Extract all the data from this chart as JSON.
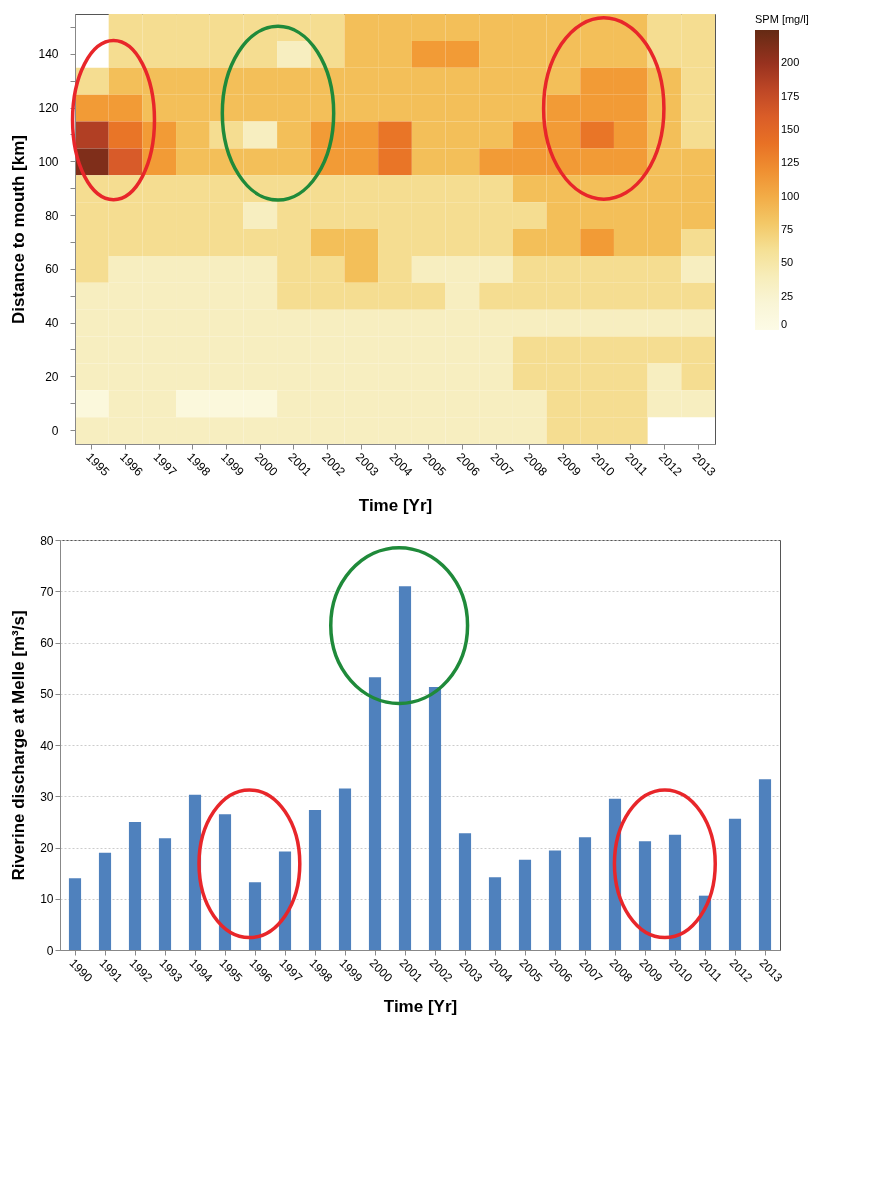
{
  "chart_data": [
    {
      "type": "heatmap",
      "xlabel": "Time [Yr]",
      "ylabel": "Distance to mouth [km]",
      "clabel": "SPM [mg/l]",
      "categories": [
        "1995",
        "1996",
        "1997",
        "1998",
        "1999",
        "2000",
        "2001",
        "2002",
        "2003",
        "2004",
        "2005",
        "2006",
        "2007",
        "2008",
        "2009",
        "2010",
        "2011",
        "2012",
        "2013"
      ],
      "y_categories": [
        null,
        "140",
        null,
        "120",
        null,
        "100",
        null,
        "80",
        null,
        "60",
        null,
        "40",
        null,
        "20",
        null,
        "0"
      ],
      "cells": [
        [
          null,
          62,
          62,
          62,
          62,
          62,
          62,
          62,
          87,
          87,
          87,
          87,
          87,
          87,
          87,
          87,
          87,
          62,
          62
        ],
        [
          null,
          62,
          62,
          62,
          62,
          62,
          37,
          62,
          87,
          87,
          112,
          112,
          87,
          87,
          87,
          87,
          87,
          62,
          62
        ],
        [
          62,
          87,
          87,
          87,
          87,
          87,
          87,
          87,
          87,
          87,
          87,
          87,
          87,
          87,
          87,
          112,
          112,
          87,
          62
        ],
        [
          112,
          112,
          87,
          87,
          87,
          87,
          87,
          87,
          87,
          87,
          87,
          87,
          87,
          87,
          112,
          112,
          112,
          87,
          62
        ],
        [
          187,
          137,
          112,
          87,
          62,
          37,
          87,
          112,
          112,
          137,
          87,
          87,
          87,
          112,
          112,
          137,
          112,
          87,
          62
        ],
        [
          212,
          162,
          112,
          87,
          87,
          87,
          87,
          112,
          112,
          137,
          87,
          87,
          112,
          112,
          112,
          112,
          112,
          87,
          87
        ],
        [
          62,
          62,
          62,
          62,
          62,
          62,
          62,
          62,
          62,
          62,
          62,
          62,
          62,
          87,
          87,
          87,
          87,
          87,
          87
        ],
        [
          62,
          62,
          62,
          62,
          62,
          37,
          62,
          62,
          62,
          62,
          62,
          62,
          62,
          62,
          87,
          87,
          87,
          87,
          87
        ],
        [
          62,
          62,
          62,
          62,
          62,
          62,
          62,
          87,
          87,
          62,
          62,
          62,
          62,
          87,
          87,
          112,
          87,
          87,
          62
        ],
        [
          62,
          37,
          37,
          37,
          37,
          37,
          62,
          62,
          87,
          62,
          37,
          37,
          37,
          62,
          62,
          62,
          62,
          62,
          37
        ],
        [
          37,
          37,
          37,
          37,
          37,
          37,
          62,
          62,
          62,
          62,
          62,
          37,
          62,
          62,
          62,
          62,
          62,
          62,
          62
        ],
        [
          37,
          37,
          37,
          37,
          37,
          37,
          37,
          37,
          37,
          37,
          37,
          37,
          37,
          37,
          37,
          37,
          37,
          37,
          37
        ],
        [
          37,
          37,
          37,
          37,
          37,
          37,
          37,
          37,
          37,
          37,
          37,
          37,
          37,
          62,
          62,
          62,
          62,
          62,
          62
        ],
        [
          37,
          37,
          37,
          37,
          37,
          37,
          37,
          37,
          37,
          37,
          37,
          37,
          37,
          62,
          62,
          62,
          62,
          37,
          62
        ],
        [
          12,
          37,
          37,
          12,
          12,
          12,
          37,
          37,
          37,
          37,
          37,
          37,
          37,
          37,
          62,
          62,
          62,
          37,
          37
        ],
        [
          37,
          37,
          37,
          37,
          37,
          37,
          37,
          37,
          37,
          37,
          37,
          37,
          37,
          37,
          62,
          62,
          62,
          null,
          null
        ]
      ],
      "clim": [
        0,
        225
      ],
      "cticks": [
        0,
        25,
        50,
        75,
        100,
        125,
        150,
        175,
        200
      ],
      "colors": [
        "#fdfbe6",
        "#f8f3cf",
        "#f5e49e",
        "#f3c35d",
        "#f29a35",
        "#e87025",
        "#d3552a",
        "#9e3320",
        "#652a14"
      ]
    },
    {
      "type": "bar",
      "xlabel": "Time [Yr]",
      "ylabel": "Riverine discharge at Melle  [m³/s]",
      "categories": [
        "1990",
        "1991",
        "1992",
        "1993",
        "1994",
        "1995",
        "1996",
        "1997",
        "1998",
        "1999",
        "2000",
        "2001",
        "2002",
        "2003",
        "2004",
        "2005",
        "2006",
        "2007",
        "2008",
        "2009",
        "2010",
        "2011",
        "2012",
        "2013"
      ],
      "series": [
        {
          "color": "#4f81bd",
          "values": [
            14,
            19,
            25,
            21.8,
            30.3,
            26.5,
            13.2,
            19.2,
            27.3,
            31.5,
            53.2,
            71,
            51.3,
            22.8,
            14.2,
            17.6,
            19.4,
            22,
            29.5,
            21.2,
            22.5,
            10.6,
            25.6,
            33.3
          ]
        }
      ],
      "ylim": [
        0,
        80
      ],
      "yticks": [
        0,
        10,
        20,
        30,
        40,
        50,
        60,
        70,
        80
      ],
      "grid": "y",
      "legend": false
    }
  ]
}
